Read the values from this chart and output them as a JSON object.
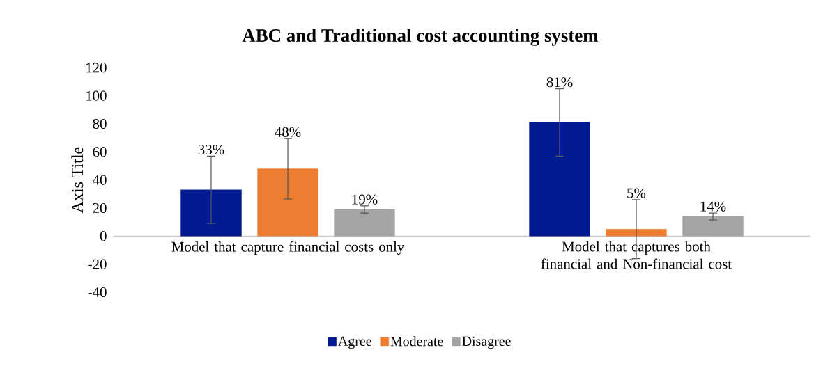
{
  "chart_data": {
    "type": "bar",
    "title": "ABC and Traditional cost accounting system",
    "ylabel": "Axis Title",
    "categories": [
      "Model that capture financial costs only",
      "Model that captures both financial and Non-financial cost"
    ],
    "series": [
      {
        "name": "Agree",
        "color": "#001a8f",
        "values": [
          33,
          81
        ],
        "errors": [
          24,
          24
        ],
        "value_labels": [
          "33%",
          "81%"
        ]
      },
      {
        "name": "Moderate",
        "color": "#ed7d31",
        "values": [
          48,
          5
        ],
        "errors": [
          21.5,
          21
        ],
        "value_labels": [
          "48%",
          "5%"
        ]
      },
      {
        "name": "Disagree",
        "color": "#a5a5a5",
        "values": [
          19,
          14
        ],
        "errors": [
          2.5,
          2.5
        ],
        "value_labels": [
          "19%",
          "14%"
        ]
      }
    ],
    "ylim": [
      -40,
      120
    ],
    "yticks": [
      -40,
      -20,
      0,
      20,
      40,
      60,
      80,
      100,
      120
    ],
    "legend": "bottom"
  }
}
